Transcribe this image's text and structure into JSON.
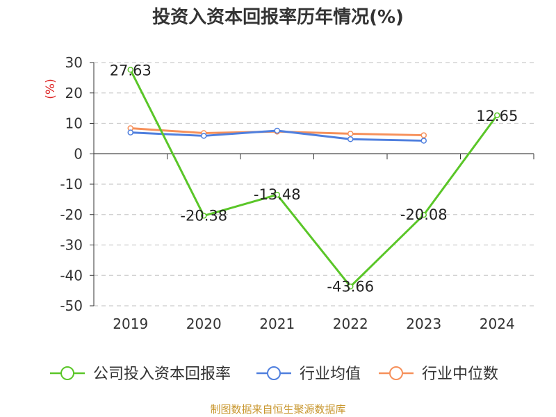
{
  "chart_data": {
    "type": "line",
    "title": "投资入资本回报率历年情况(%)",
    "ylabel": "(%)",
    "categories": [
      "2019",
      "2020",
      "2021",
      "2022",
      "2023",
      "2024"
    ],
    "ylim": [
      -50,
      30
    ],
    "yticks": [
      30,
      20,
      10,
      0,
      -10,
      -20,
      -30,
      -40,
      -50
    ],
    "grid": true,
    "legend_position": "bottom",
    "series": [
      {
        "name": "公司投入资本回报率",
        "color": "#5ac628",
        "values": [
          27.63,
          -20.38,
          -13.48,
          -43.66,
          -20.08,
          12.65
        ],
        "labels": [
          "27.63",
          "-20.38",
          "-13.48",
          "-43.66",
          "-20.08",
          "12.65"
        ]
      },
      {
        "name": "行业均值",
        "color": "#4f7fde",
        "values": [
          7.0,
          5.9,
          7.6,
          4.8,
          4.3,
          null
        ]
      },
      {
        "name": "行业中位数",
        "color": "#f6905a",
        "values": [
          8.4,
          6.8,
          7.3,
          6.6,
          6.1,
          null
        ]
      }
    ]
  },
  "source": "制图数据来自恒生聚源数据库"
}
